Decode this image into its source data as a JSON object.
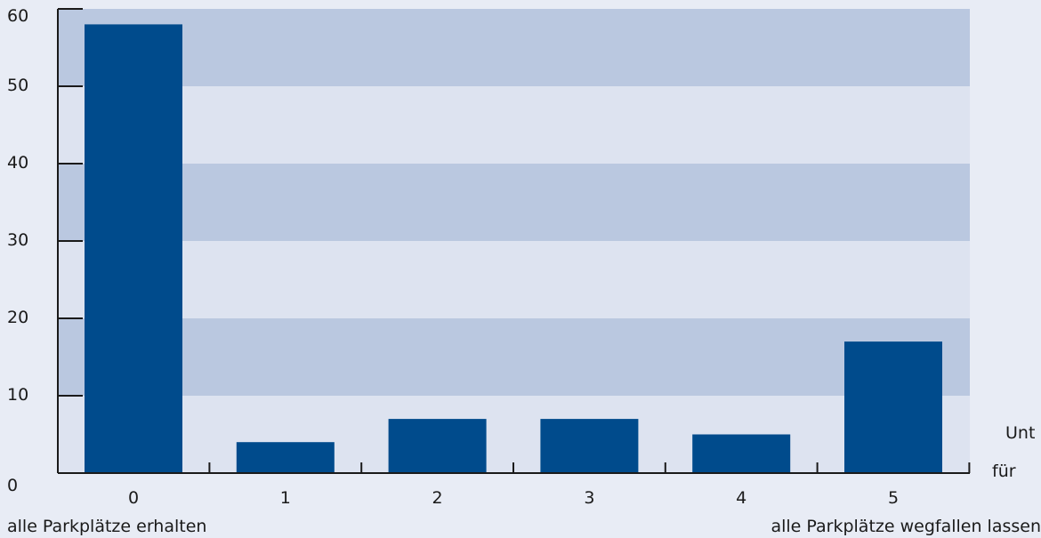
{
  "chart_data": {
    "type": "bar",
    "title": "",
    "xlabel": "",
    "ylabel": "",
    "categories": [
      "0",
      "1",
      "2",
      "3",
      "4",
      "5"
    ],
    "values": [
      58,
      4,
      7,
      7,
      5,
      17
    ],
    "ylim": [
      0,
      60
    ],
    "yticks": [
      "0",
      "10",
      "20",
      "30",
      "40",
      "50",
      "60"
    ],
    "grid": "alternating horizontal bands",
    "legend": "none",
    "colors": {
      "bar": "#004b8c",
      "band_dark": "#bac8e0",
      "band_light": "#dde3f0",
      "background": "#e8ecf5",
      "axis": "#1a1a1a"
    },
    "annotations": {
      "left_end": "alle Parkplätze erhalten",
      "right_end": "alle Parkplätze wegfallen lassen",
      "side_line1": "Unt",
      "side_line2": "für"
    }
  }
}
